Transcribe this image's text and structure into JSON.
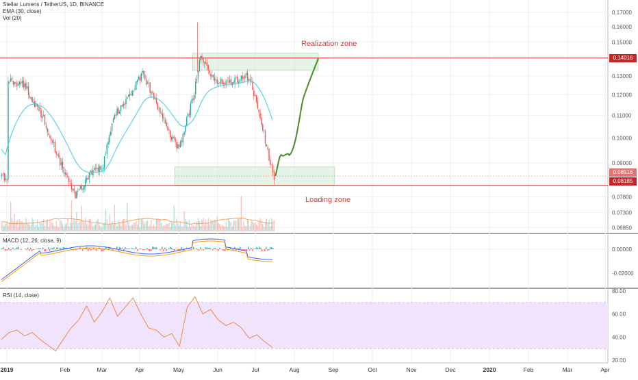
{
  "header": {
    "title": "Stellar Lumens / TetherUS, 1D, BINANCE",
    "ema_label": "EMA (30, close)",
    "vol_label": "Vol (20)"
  },
  "annotations": {
    "realization_zone": "Realization zone",
    "loading_zone": "Loading zone"
  },
  "price_badges": [
    {
      "label": "0.14016",
      "color": "#c62828"
    },
    {
      "label": "0.08516",
      "color": "#e57373"
    },
    {
      "label": "0.08185",
      "color": "#c62828"
    }
  ],
  "panels": {
    "macd_label": "MACD (12, 26, close, 9)",
    "rsi_label": "RSI (14, close)"
  },
  "colors": {
    "up": "#26a69a",
    "down": "#ef5350",
    "ema": "#4dd0e1",
    "resistance": "#c62828",
    "projection": "#4a8c2a",
    "zone_fill": "#c8e6c9",
    "rsi_line": "#f08a45",
    "rsi_band": "#f1e3fb"
  },
  "chart_data": [
    {
      "type": "candlestick",
      "title": "Stellar Lumens / TetherUS, 1D, BINANCE",
      "x_ticks": [
        "2019",
        "Feb",
        "Mar",
        "Apr",
        "May",
        "Jun",
        "Jul",
        "Aug",
        "Sep",
        "Oct",
        "Nov",
        "Dec",
        "2020",
        "Feb",
        "Mar",
        "Apr"
      ],
      "y_ticks": [
        "0.17000",
        "0.16000",
        "0.15000",
        "0.14000",
        "0.13000",
        "0.12000",
        "0.11000",
        "0.10000",
        "0.09000",
        "0.07800",
        "0.07300",
        "0.06850"
      ],
      "y_scale": "log",
      "y_range": [
        0.0655,
        0.178
      ],
      "series_close_approx": [
        {
          "x": "2019-01-01",
          "y": 0.128
        },
        {
          "x": "2019-01-10",
          "y": 0.125
        },
        {
          "x": "2019-01-20",
          "y": 0.109
        },
        {
          "x": "2019-01-28",
          "y": 0.092
        },
        {
          "x": "2019-02-08",
          "y": 0.078
        },
        {
          "x": "2019-02-20",
          "y": 0.086
        },
        {
          "x": "2019-03-01",
          "y": 0.088
        },
        {
          "x": "2019-03-10",
          "y": 0.11
        },
        {
          "x": "2019-03-20",
          "y": 0.116
        },
        {
          "x": "2019-04-03",
          "y": 0.132
        },
        {
          "x": "2019-04-10",
          "y": 0.12
        },
        {
          "x": "2019-04-25",
          "y": 0.1
        },
        {
          "x": "2019-05-01",
          "y": 0.096
        },
        {
          "x": "2019-05-12",
          "y": 0.118
        },
        {
          "x": "2019-05-18",
          "y": 0.14
        },
        {
          "x": "2019-05-28",
          "y": 0.128
        },
        {
          "x": "2019-06-10",
          "y": 0.126
        },
        {
          "x": "2019-06-26",
          "y": 0.13
        },
        {
          "x": "2019-07-05",
          "y": 0.108
        },
        {
          "x": "2019-07-15",
          "y": 0.085
        }
      ],
      "ema_30": {
        "name": "EMA (30, close)"
      },
      "horizontal_levels": [
        0.14016,
        0.08185
      ],
      "zones": [
        {
          "label": "Realization zone",
          "from": "2019-05-12",
          "to": "2019-08-20",
          "low": 0.133,
          "high": 0.143
        },
        {
          "label": "Loading zone",
          "from": "2019-04-28",
          "to": "2019-09-02",
          "low": 0.082,
          "high": 0.0885
        }
      ],
      "projection": [
        {
          "x": "2019-07-17",
          "y": 0.0852
        },
        {
          "x": "2019-07-22",
          "y": 0.093
        },
        {
          "x": "2019-07-28",
          "y": 0.093
        },
        {
          "x": "2019-08-08",
          "y": 0.118
        },
        {
          "x": "2019-08-20",
          "y": 0.14
        }
      ]
    },
    {
      "type": "line",
      "title": "MACD (12, 26, close, 9)",
      "y_ticks": [
        "0.00000",
        "-0.02000"
      ]
    },
    {
      "type": "line",
      "title": "RSI (14, close)",
      "y_ticks": [
        "80.00",
        "60.00",
        "40.00",
        "20.00"
      ],
      "bands": [
        70,
        30
      ],
      "values_approx": [
        38,
        44,
        46,
        41,
        44,
        38,
        33,
        28,
        38,
        48,
        55,
        67,
        53,
        62,
        74,
        58,
        66,
        74,
        60,
        48,
        46,
        40,
        43,
        32,
        66,
        75,
        60,
        64,
        55,
        50,
        53,
        48,
        39,
        42,
        36,
        31
      ]
    }
  ]
}
